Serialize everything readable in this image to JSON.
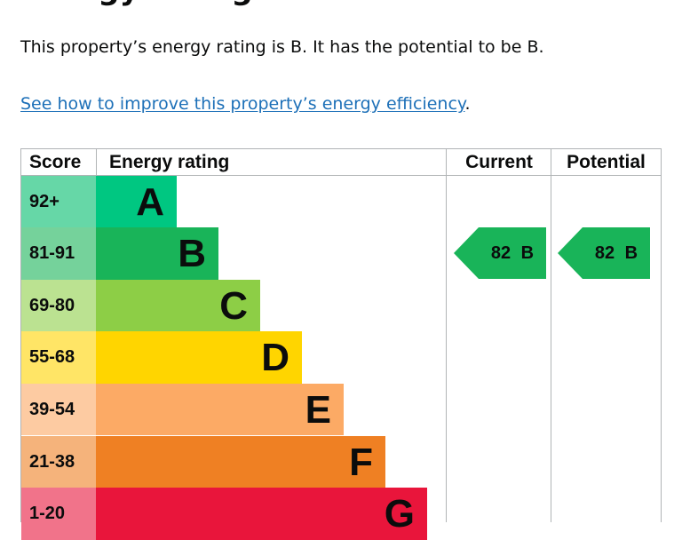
{
  "page": {
    "heading": "Energy rating",
    "intro": "This property’s energy rating is B. It has the potential to be B.",
    "link_text": "See how to improve this property’s energy efficiency",
    "link_suffix": "."
  },
  "chart": {
    "headers": {
      "score": "Score",
      "rating": "Energy rating",
      "current": "Current",
      "potential": "Potential"
    },
    "bands": [
      {
        "score": "92+",
        "letter": "A",
        "color": "#00c781",
        "light": "#66d7a7"
      },
      {
        "score": "81-91",
        "letter": "B",
        "color": "#19b459",
        "light": "#75d29b"
      },
      {
        "score": "69-80",
        "letter": "C",
        "color": "#8dce46",
        "light": "#bbe291"
      },
      {
        "score": "55-68",
        "letter": "D",
        "color": "#ffd500",
        "light": "#ffe566"
      },
      {
        "score": "39-54",
        "letter": "E",
        "color": "#fcaa65",
        "light": "#fdcba2"
      },
      {
        "score": "21-38",
        "letter": "F",
        "color": "#ef8023",
        "light": "#f5b37b"
      },
      {
        "score": "1-20",
        "letter": "G",
        "color": "#e9153b",
        "light": "#f1738a"
      }
    ],
    "current": {
      "label": "82 B",
      "score": 82,
      "band": "B",
      "color": "#19b459"
    },
    "potential": {
      "label": "82 B",
      "score": 82,
      "band": "B",
      "color": "#19b459"
    }
  }
}
